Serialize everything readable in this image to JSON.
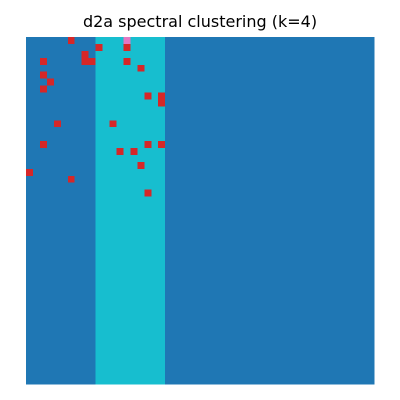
{
  "chart_data": {
    "type": "heatmap",
    "title": "d2a spectral clustering (k=4)",
    "xlabel": "",
    "ylabel": "",
    "axes_visible": false,
    "grid_size": [
      50,
      50
    ],
    "xlim": [
      0,
      50
    ],
    "ylim": [
      0,
      50
    ],
    "cluster_colors": {
      "0": "#1f77b4",
      "1": "#17becf",
      "2": "#d62728",
      "3": "#e377c2"
    },
    "base_pattern": {
      "description_columns": [
        {
          "cols": [
            0,
            9
          ],
          "cluster": 0
        },
        {
          "cols": [
            10,
            19
          ],
          "cluster": 1
        },
        {
          "cols": [
            20,
            49
          ],
          "cluster": 0
        }
      ]
    },
    "cluster_2_cells": [
      [
        6,
        0
      ],
      [
        10,
        1
      ],
      [
        14,
        1
      ],
      [
        8,
        2
      ],
      [
        8,
        3
      ],
      [
        9,
        3
      ],
      [
        14,
        3
      ],
      [
        2,
        3
      ],
      [
        2,
        5
      ],
      [
        3,
        6
      ],
      [
        2,
        7
      ],
      [
        16,
        4
      ],
      [
        17,
        8
      ],
      [
        19,
        8
      ],
      [
        19,
        9
      ],
      [
        4,
        12
      ],
      [
        12,
        12
      ],
      [
        2,
        15
      ],
      [
        17,
        15
      ],
      [
        19,
        15
      ],
      [
        13,
        16
      ],
      [
        15,
        16
      ],
      [
        16,
        18
      ],
      [
        0,
        19
      ],
      [
        6,
        20
      ],
      [
        17,
        22
      ]
    ],
    "cluster_3_cells": [
      [
        14,
        0
      ]
    ]
  }
}
